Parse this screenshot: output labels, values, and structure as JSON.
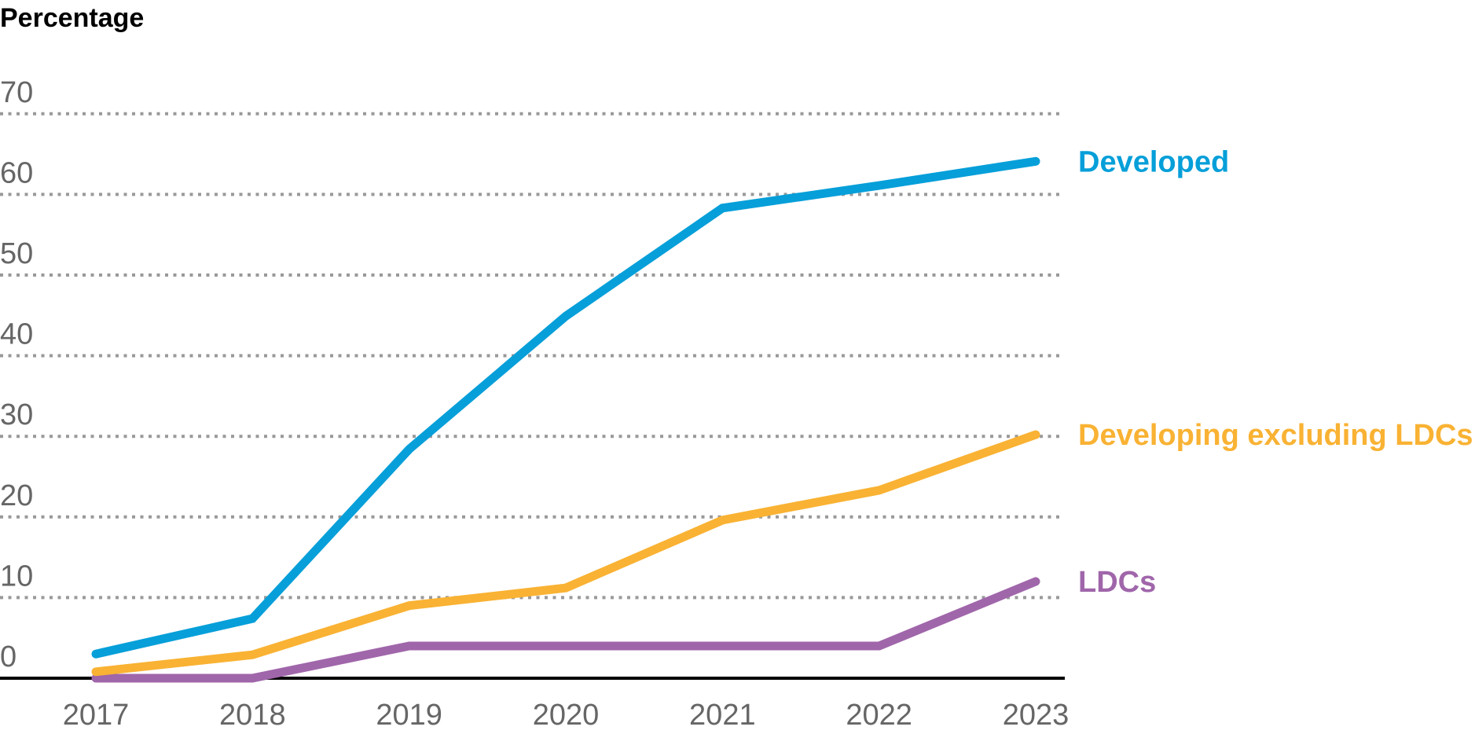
{
  "chart_data": {
    "type": "line",
    "title": "",
    "ylabel": "Percentage",
    "xlabel": "",
    "x": [
      "2017",
      "2018",
      "2019",
      "2020",
      "2021",
      "2022",
      "2023"
    ],
    "ylim": [
      0,
      70
    ],
    "yticks": [
      0,
      10,
      20,
      30,
      40,
      50,
      60,
      70
    ],
    "grid": true,
    "legend": "direct-labels-right",
    "series": [
      {
        "name": "Developed",
        "color": "#069FD9",
        "values": [
          3.0,
          7.4,
          28.4,
          44.9,
          58.3,
          61.1,
          64.1
        ]
      },
      {
        "name": "Developing excluding LDCs",
        "color": "#F9B233",
        "values": [
          0.8,
          2.9,
          9.0,
          11.2,
          19.6,
          23.3,
          30.2
        ]
      },
      {
        "name": "LDCs",
        "color": "#A066AA",
        "values": [
          0,
          0,
          4.0,
          4.0,
          4.0,
          4.0,
          12.0
        ]
      }
    ]
  }
}
